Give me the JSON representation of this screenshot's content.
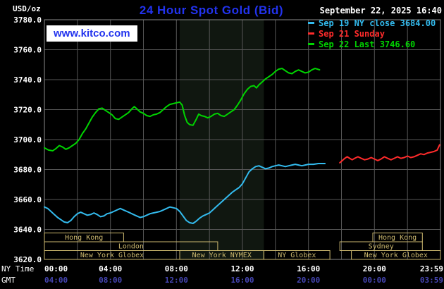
{
  "header": {
    "units_label": "USD/oz",
    "title": "24 Hour Spot Gold (Bid)",
    "datetime": "September 22, 2025 16:40",
    "watermark": "www.kitco.com"
  },
  "legend": [
    {
      "label": "Sep 19 NY close 3684.00",
      "color": "#33bbee"
    },
    {
      "label": "Sep 21 Sunday",
      "color": "#ff2b2b"
    },
    {
      "label": "Sep 22 Last 3746.60",
      "color": "#00d400"
    }
  ],
  "colors": {
    "background": "#000000",
    "plot_border": "#8a8a8a",
    "grid": "#565656",
    "title": "#2233ee",
    "axis_text": "#ffffff",
    "gmt_text": "#4545b2",
    "session": "#cdb96f",
    "nymex_band": "#101710",
    "watermark_bg": "#ffffff",
    "watermark_text": "#2233ee"
  },
  "axes": {
    "ny_time_label": "NY Time",
    "gmt_label": "GMT",
    "x_ticks": [
      {
        "hour": 0,
        "ny": "00:00",
        "gmt": "04:00"
      },
      {
        "hour": 4,
        "ny": "04:00",
        "gmt": "08:00"
      },
      {
        "hour": 8,
        "ny": "08:00",
        "gmt": "12:00"
      },
      {
        "hour": 12,
        "ny": "12:00",
        "gmt": "16:00"
      },
      {
        "hour": 16,
        "ny": "16:00",
        "gmt": "20:00"
      },
      {
        "hour": 20,
        "ny": "20:00",
        "gmt": "00:00"
      },
      {
        "hour": 23.983,
        "ny": "23:59",
        "gmt": "03:59"
      }
    ],
    "y_ticks": [
      3620,
      3640,
      3660,
      3680,
      3700,
      3720,
      3740,
      3760,
      3780
    ]
  },
  "sessions": [
    {
      "label": "Hong Kong",
      "row": 0,
      "start": 0,
      "end": 4.8
    },
    {
      "label": "Hong Kong",
      "row": 0,
      "start": 19.9,
      "end": 22.9
    },
    {
      "label": "London",
      "row": 1,
      "start": 0,
      "end": 10.5
    },
    {
      "label": "Sydney",
      "row": 1,
      "start": 17.9,
      "end": 22.9
    },
    {
      "label": "New York Globex",
      "row": 2,
      "start": 0,
      "end": 8.2
    },
    {
      "label": "New York NYMEX",
      "row": 2,
      "start": 8.2,
      "end": 13.3
    },
    {
      "label": "NY Globex",
      "row": 2,
      "start": 13.3,
      "end": 17.3
    },
    {
      "label": "New York Globex",
      "row": 2,
      "start": 18.6,
      "end": 24
    }
  ],
  "chart_data": {
    "type": "line",
    "title": "24 Hour Spot Gold (Bid)",
    "xlabel": "NY Time (hours)",
    "ylabel": "USD/oz",
    "xlim": [
      0,
      24
    ],
    "ylim": [
      3620,
      3780
    ],
    "grid": true,
    "legend_position": "top-right",
    "nymex_band_hours": [
      8.2,
      13.3
    ],
    "series": [
      {
        "name": "Sep 19 NY close 3684.00",
        "color": "#33bbee",
        "points": [
          [
            0,
            3655
          ],
          [
            0.2,
            3654
          ],
          [
            0.4,
            3652
          ],
          [
            0.6,
            3650
          ],
          [
            0.8,
            3648
          ],
          [
            1,
            3646.5
          ],
          [
            1.2,
            3645
          ],
          [
            1.4,
            3644.5
          ],
          [
            1.6,
            3646
          ],
          [
            1.8,
            3648.5
          ],
          [
            2,
            3650.5
          ],
          [
            2.2,
            3651.5
          ],
          [
            2.4,
            3650.5
          ],
          [
            2.6,
            3649.5
          ],
          [
            2.8,
            3650
          ],
          [
            3,
            3651
          ],
          [
            3.2,
            3650
          ],
          [
            3.4,
            3648.5
          ],
          [
            3.6,
            3649
          ],
          [
            3.8,
            3650.5
          ],
          [
            4,
            3651
          ],
          [
            4.2,
            3652
          ],
          [
            4.4,
            3653
          ],
          [
            4.6,
            3654
          ],
          [
            4.8,
            3653
          ],
          [
            5,
            3652
          ],
          [
            5.2,
            3651
          ],
          [
            5.4,
            3650
          ],
          [
            5.6,
            3649
          ],
          [
            5.8,
            3648
          ],
          [
            6,
            3648.5
          ],
          [
            6.2,
            3649.5
          ],
          [
            6.4,
            3650.5
          ],
          [
            6.6,
            3651
          ],
          [
            6.8,
            3651.5
          ],
          [
            7,
            3652
          ],
          [
            7.2,
            3653
          ],
          [
            7.4,
            3654
          ],
          [
            7.6,
            3655
          ],
          [
            7.8,
            3654.5
          ],
          [
            8,
            3654
          ],
          [
            8.2,
            3652
          ],
          [
            8.4,
            3649
          ],
          [
            8.6,
            3646
          ],
          [
            8.8,
            3644.5
          ],
          [
            9,
            3644
          ],
          [
            9.2,
            3645.5
          ],
          [
            9.4,
            3647.5
          ],
          [
            9.6,
            3649
          ],
          [
            9.8,
            3650
          ],
          [
            10,
            3651
          ],
          [
            10.2,
            3653
          ],
          [
            10.4,
            3655
          ],
          [
            10.6,
            3657
          ],
          [
            10.8,
            3659
          ],
          [
            11,
            3661
          ],
          [
            11.2,
            3663
          ],
          [
            11.4,
            3665
          ],
          [
            11.6,
            3666.5
          ],
          [
            11.8,
            3668
          ],
          [
            12,
            3670.5
          ],
          [
            12.2,
            3674.5
          ],
          [
            12.4,
            3678.5
          ],
          [
            12.6,
            3680.5
          ],
          [
            12.8,
            3682
          ],
          [
            13,
            3682.5
          ],
          [
            13.2,
            3681.5
          ],
          [
            13.4,
            3680.5
          ],
          [
            13.6,
            3681
          ],
          [
            13.8,
            3682
          ],
          [
            14,
            3682.5
          ],
          [
            14.2,
            3683
          ],
          [
            14.4,
            3682.5
          ],
          [
            14.6,
            3682
          ],
          [
            14.8,
            3682.5
          ],
          [
            15,
            3683
          ],
          [
            15.2,
            3683.5
          ],
          [
            15.4,
            3683
          ],
          [
            15.6,
            3682.5
          ],
          [
            15.8,
            3683
          ],
          [
            16,
            3683.5
          ],
          [
            16.3,
            3683.5
          ],
          [
            16.6,
            3684
          ],
          [
            17,
            3684
          ]
        ]
      },
      {
        "name": "Sep 21 Sunday",
        "color": "#ff2b2b",
        "points": [
          [
            17.9,
            3684.5
          ],
          [
            18.05,
            3686
          ],
          [
            18.2,
            3687.5
          ],
          [
            18.35,
            3688.5
          ],
          [
            18.5,
            3687.5
          ],
          [
            18.65,
            3686.5
          ],
          [
            18.8,
            3687.5
          ],
          [
            19,
            3688.5
          ],
          [
            19.2,
            3687.5
          ],
          [
            19.4,
            3686.5
          ],
          [
            19.6,
            3687
          ],
          [
            19.8,
            3688
          ],
          [
            20,
            3687
          ],
          [
            20.2,
            3686
          ],
          [
            20.4,
            3687
          ],
          [
            20.6,
            3688.5
          ],
          [
            20.8,
            3687.5
          ],
          [
            21,
            3686.5
          ],
          [
            21.2,
            3687.5
          ],
          [
            21.4,
            3688.5
          ],
          [
            21.6,
            3687.5
          ],
          [
            21.8,
            3688
          ],
          [
            22,
            3689
          ],
          [
            22.2,
            3688
          ],
          [
            22.4,
            3688.5
          ],
          [
            22.6,
            3689.5
          ],
          [
            22.8,
            3690.5
          ],
          [
            23,
            3690
          ],
          [
            23.2,
            3691
          ],
          [
            23.4,
            3691.5
          ],
          [
            23.6,
            3692
          ],
          [
            23.8,
            3693
          ],
          [
            23.95,
            3696.5
          ]
        ]
      },
      {
        "name": "Sep 22 Last 3746.60",
        "color": "#00d400",
        "points": [
          [
            0,
            3694.5
          ],
          [
            0.25,
            3693
          ],
          [
            0.5,
            3692.5
          ],
          [
            0.7,
            3694
          ],
          [
            0.9,
            3696
          ],
          [
            1.1,
            3695
          ],
          [
            1.3,
            3693.5
          ],
          [
            1.5,
            3694.5
          ],
          [
            1.7,
            3696
          ],
          [
            1.9,
            3697.5
          ],
          [
            2.1,
            3700
          ],
          [
            2.3,
            3704
          ],
          [
            2.5,
            3707
          ],
          [
            2.7,
            3711
          ],
          [
            2.9,
            3715
          ],
          [
            3.1,
            3718
          ],
          [
            3.3,
            3720.5
          ],
          [
            3.5,
            3721
          ],
          [
            3.7,
            3719.5
          ],
          [
            3.9,
            3718
          ],
          [
            4.1,
            3716.5
          ],
          [
            4.3,
            3714
          ],
          [
            4.5,
            3713.5
          ],
          [
            4.7,
            3715
          ],
          [
            4.9,
            3716.5
          ],
          [
            5.1,
            3718
          ],
          [
            5.3,
            3720.5
          ],
          [
            5.45,
            3722
          ],
          [
            5.6,
            3720.5
          ],
          [
            5.8,
            3718.5
          ],
          [
            6,
            3717.5
          ],
          [
            6.2,
            3716
          ],
          [
            6.4,
            3715.5
          ],
          [
            6.6,
            3716.5
          ],
          [
            6.8,
            3717
          ],
          [
            7,
            3718
          ],
          [
            7.2,
            3720
          ],
          [
            7.4,
            3722
          ],
          [
            7.6,
            3723.5
          ],
          [
            7.8,
            3724
          ],
          [
            8,
            3724.5
          ],
          [
            8.2,
            3725
          ],
          [
            8.35,
            3723
          ],
          [
            8.5,
            3716
          ],
          [
            8.65,
            3711.5
          ],
          [
            8.8,
            3710
          ],
          [
            9,
            3709.5
          ],
          [
            9.2,
            3713.5
          ],
          [
            9.35,
            3717
          ],
          [
            9.5,
            3716
          ],
          [
            9.7,
            3715.5
          ],
          [
            9.9,
            3714.5
          ],
          [
            10.1,
            3715.5
          ],
          [
            10.3,
            3717
          ],
          [
            10.5,
            3717.5
          ],
          [
            10.7,
            3716
          ],
          [
            10.9,
            3715.5
          ],
          [
            11.1,
            3717
          ],
          [
            11.3,
            3718.5
          ],
          [
            11.5,
            3720
          ],
          [
            11.7,
            3723
          ],
          [
            11.9,
            3726.5
          ],
          [
            12.1,
            3730.5
          ],
          [
            12.3,
            3733.5
          ],
          [
            12.5,
            3735.5
          ],
          [
            12.7,
            3736
          ],
          [
            12.85,
            3734.5
          ],
          [
            13,
            3736.5
          ],
          [
            13.2,
            3738.5
          ],
          [
            13.4,
            3740.5
          ],
          [
            13.6,
            3742
          ],
          [
            13.8,
            3743.5
          ],
          [
            14,
            3745.5
          ],
          [
            14.2,
            3747
          ],
          [
            14.4,
            3747.5
          ],
          [
            14.6,
            3746
          ],
          [
            14.8,
            3744.5
          ],
          [
            15,
            3744
          ],
          [
            15.2,
            3745.5
          ],
          [
            15.4,
            3746.5
          ],
          [
            15.6,
            3745.5
          ],
          [
            15.8,
            3744.5
          ],
          [
            16,
            3745
          ],
          [
            16.2,
            3746.5
          ],
          [
            16.4,
            3747.5
          ],
          [
            16.67,
            3746.6
          ]
        ]
      }
    ]
  }
}
